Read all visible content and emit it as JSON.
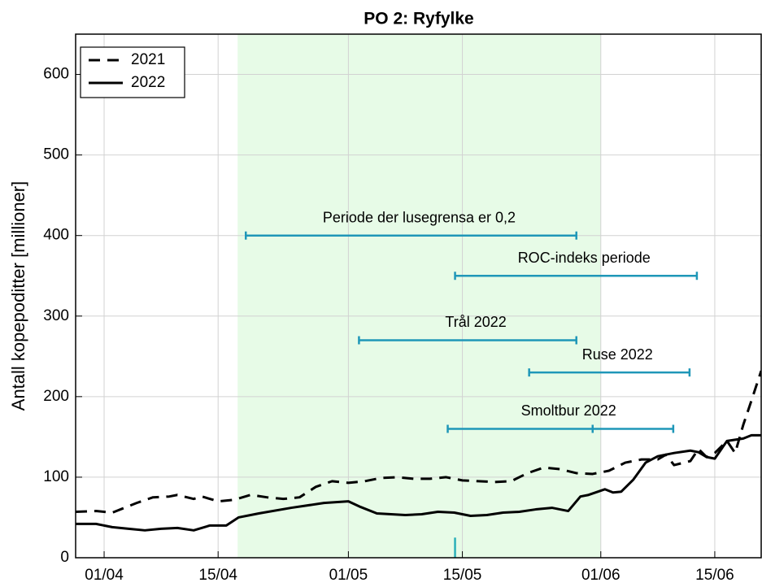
{
  "chart_data": {
    "type": "line",
    "title": "PO 2: Ryfylke",
    "ylabel": "Antall kopepoditter [millioner]",
    "xlim": [
      87.5,
      171.7
    ],
    "ylim": [
      0,
      650
    ],
    "xticks": [
      {
        "value": 91,
        "label": "01/04"
      },
      {
        "value": 105,
        "label": "15/04"
      },
      {
        "value": 121,
        "label": "01/05"
      },
      {
        "value": 135,
        "label": "15/05"
      },
      {
        "value": 152,
        "label": "01/06"
      },
      {
        "value": 166,
        "label": "15/06"
      }
    ],
    "yticks": [
      0,
      100,
      200,
      300,
      400,
      500,
      600
    ],
    "grid": true,
    "legend": "top-left",
    "shade": {
      "start": 107.4,
      "end": 152,
      "color": "#e7fbe7"
    },
    "period_color": "#1f97b8",
    "periods": [
      {
        "label": "Periode der lusegrensa er 0,2",
        "start": 108.4,
        "end": 149,
        "y": 400
      },
      {
        "label": "ROC-indeks periode",
        "start": 134.1,
        "end": 163.8,
        "y": 350
      },
      {
        "label": "Trål 2022",
        "start": 122.3,
        "end": 149,
        "y": 270
      },
      {
        "label": "Ruse 2022",
        "start": 143.2,
        "end": 162.9,
        "y": 230
      },
      {
        "label": "Smoltbur 2022",
        "start": 133.2,
        "end": 160.9,
        "y": 160,
        "mid": 151
      }
    ],
    "marker": {
      "x": 134.1,
      "height": 25
    },
    "series": [
      {
        "name": "2021",
        "color": "#000000",
        "dash": true,
        "x": [
          87.5,
          90,
          92,
          95,
          97,
          99,
          100,
          102,
          103,
          105,
          107,
          109,
          111,
          113,
          115,
          117,
          119,
          121,
          123,
          125,
          127,
          129,
          131,
          133,
          135,
          137,
          139,
          141,
          143,
          145,
          147,
          149,
          151,
          153,
          155,
          157,
          159,
          160,
          161,
          163,
          164,
          165,
          166,
          167.5,
          168.5,
          169.5,
          170.5,
          171.7
        ],
        "values": [
          57,
          58,
          56,
          68,
          75,
          76,
          78,
          73,
          76,
          70,
          72,
          78,
          75,
          73,
          75,
          88,
          95,
          93,
          95,
          99,
          100,
          98,
          98,
          100,
          96,
          95,
          94,
          95,
          105,
          112,
          110,
          105,
          104,
          108,
          118,
          122,
          122,
          128,
          115,
          120,
          135,
          125,
          130,
          145,
          130,
          165,
          195,
          232
        ]
      },
      {
        "name": "2022",
        "color": "#000000",
        "dash": false,
        "x": [
          87.5,
          90,
          92,
          94,
          96,
          98,
          100,
          102,
          104,
          106,
          107.5,
          110,
          114,
          118,
          121,
          122.5,
          124.5,
          128,
          130,
          132,
          134,
          136,
          138,
          140,
          142,
          144,
          146,
          148,
          149.5,
          150.5,
          152.5,
          153.5,
          154.5,
          156,
          157.5,
          159,
          161,
          163,
          164,
          165,
          166,
          167.5,
          169.5,
          170.5,
          171.7
        ],
        "values": [
          42,
          42,
          38,
          36,
          34,
          36,
          37,
          34,
          40,
          40,
          50,
          55,
          62,
          68,
          70,
          63,
          55,
          53,
          54,
          57,
          56,
          52,
          53,
          56,
          57,
          60,
          62,
          58,
          76,
          78,
          85,
          81,
          82,
          97,
          118,
          126,
          130,
          133,
          131,
          125,
          123,
          145,
          148,
          152,
          152
        ]
      }
    ]
  }
}
